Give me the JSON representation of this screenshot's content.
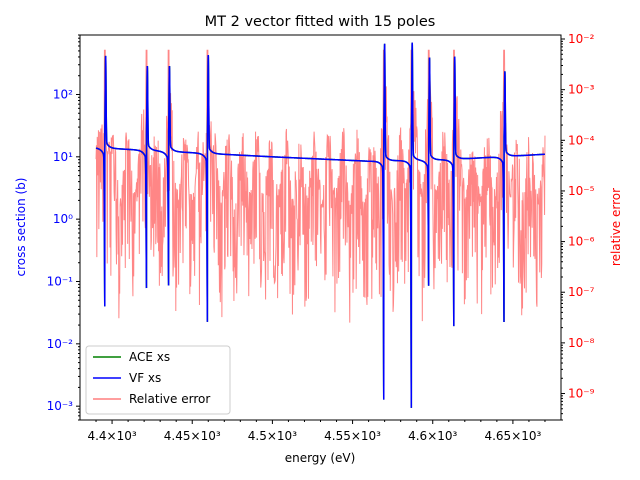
{
  "chart_data": {
    "type": "line",
    "title": "MT 2 vector fitted with 15 poles",
    "xlabel": "energy (eV)",
    "ylabel_left": "cross section (b)",
    "ylabel_right": "relative error",
    "xlim": [
      4380,
      4680
    ],
    "ylim_left": [
      0.0006,
      900
    ],
    "ylim_right": [
      3e-10,
      0.012
    ],
    "yscale_left": "log",
    "yscale_right": "log",
    "x_ticks": [
      {
        "value": 4400,
        "label": "4.4×10³"
      },
      {
        "value": 4450,
        "label": "4.45×10³"
      },
      {
        "value": 4500,
        "label": "4.5×10³"
      },
      {
        "value": 4550,
        "label": "4.55×10³"
      },
      {
        "value": 4600,
        "label": "4.6×10³"
      },
      {
        "value": 4650,
        "label": "4.65×10³"
      }
    ],
    "y_left_ticks": [
      {
        "value": 0.001,
        "label": "10⁻³"
      },
      {
        "value": 0.01,
        "label": "10⁻²"
      },
      {
        "value": 0.1,
        "label": "10⁻¹"
      },
      {
        "value": 1,
        "label": "10⁰"
      },
      {
        "value": 10,
        "label": "10¹"
      },
      {
        "value": 100,
        "label": "10²"
      }
    ],
    "y_right_ticks": [
      {
        "value": 1e-09,
        "label": "10⁻⁹"
      },
      {
        "value": 1e-08,
        "label": "10⁻⁸"
      },
      {
        "value": 1e-07,
        "label": "10⁻⁷"
      },
      {
        "value": 1e-06,
        "label": "10⁻⁶"
      },
      {
        "value": 1e-05,
        "label": "10⁻⁵"
      },
      {
        "value": 0.0001,
        "label": "10⁻⁴"
      },
      {
        "value": 0.001,
        "label": "10⁻³"
      },
      {
        "value": 0.01,
        "label": "10⁻²"
      }
    ],
    "legend_position": "lower-left",
    "colors": {
      "ace": "#008000",
      "vf": "#0000ff",
      "error": "#ff7f7f",
      "left_axis": "#0000ff",
      "right_axis": "#ff0000"
    },
    "series": [
      {
        "name": "ACE xs",
        "axis": "left",
        "description_of_shape": "overlaps VF xs"
      },
      {
        "name": "VF xs",
        "axis": "left",
        "background": [
          [
            4390,
            14
          ],
          [
            4500,
            10
          ],
          [
            4560,
            8.5
          ],
          [
            4610,
            9
          ],
          [
            4670,
            11
          ]
        ],
        "resonances": [
          {
            "x": 4395.5,
            "peak": 320,
            "dip": 0.05
          },
          {
            "x": 4421.5,
            "peak": 220,
            "dip": 0.1
          },
          {
            "x": 4435.3,
            "peak": 220,
            "dip": 0.11
          },
          {
            "x": 4459.5,
            "peak": 330,
            "dip": 0.028
          },
          {
            "x": 4569.5,
            "peak": 500,
            "dip": 0.0015
          },
          {
            "x": 4586.7,
            "peak": 520,
            "dip": 0.0011
          },
          {
            "x": 4597.5,
            "peak": 300,
            "dip": 0.11
          },
          {
            "x": 4613.2,
            "peak": 310,
            "dip": 0.024
          },
          {
            "x": 4644.5,
            "peak": 180,
            "dip": 0.028
          }
        ]
      },
      {
        "name": "Relative error",
        "axis": "right",
        "range": [
          3e-09,
          0.006
        ],
        "typical": [
          1e-05,
          5e-05
        ]
      }
    ]
  }
}
